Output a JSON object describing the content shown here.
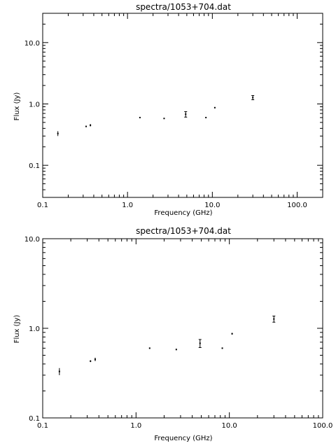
{
  "chart_data": [
    {
      "type": "scatter",
      "title": "spectra/1053+704.dat",
      "xlabel": "Frequency (GHz)",
      "ylabel": "Flux (Jy)",
      "xscale": "log",
      "yscale": "log",
      "xlim": [
        0.1,
        200
      ],
      "ylim": [
        0.03,
        30
      ],
      "xticks": [
        "0.1",
        "1.0",
        "10.0",
        "100.0"
      ],
      "yticks": [
        "0.1",
        "1.0",
        "10.0"
      ],
      "points": [
        {
          "x": 0.151,
          "y": 0.33,
          "err": 0.03
        },
        {
          "x": 0.325,
          "y": 0.43,
          "err": 0.01
        },
        {
          "x": 0.365,
          "y": 0.45,
          "err": 0.02
        },
        {
          "x": 1.4,
          "y": 0.6,
          "err": 0.01
        },
        {
          "x": 2.7,
          "y": 0.58,
          "err": 0.01
        },
        {
          "x": 4.85,
          "y": 0.68,
          "err": 0.07
        },
        {
          "x": 8.4,
          "y": 0.6,
          "err": 0.01
        },
        {
          "x": 10.7,
          "y": 0.87,
          "err": 0.02
        },
        {
          "x": 30.0,
          "y": 1.27,
          "err": 0.1
        }
      ]
    },
    {
      "type": "scatter",
      "title": "spectra/1053+704.dat",
      "xlabel": "Frequency (GHz)",
      "ylabel": "Flux (Jy)",
      "xscale": "log",
      "yscale": "log",
      "xlim": [
        0.1,
        100
      ],
      "ylim": [
        0.1,
        10
      ],
      "xticks": [
        "0.1",
        "1.0",
        "10.0",
        "100.0"
      ],
      "yticks": [
        "0.1",
        "1.0",
        "10.0"
      ],
      "points": [
        {
          "x": 0.151,
          "y": 0.33,
          "err": 0.03
        },
        {
          "x": 0.325,
          "y": 0.43,
          "err": 0.01
        },
        {
          "x": 0.365,
          "y": 0.45,
          "err": 0.02
        },
        {
          "x": 1.4,
          "y": 0.6,
          "err": 0.01
        },
        {
          "x": 2.7,
          "y": 0.58,
          "err": 0.01
        },
        {
          "x": 4.85,
          "y": 0.68,
          "err": 0.07
        },
        {
          "x": 8.4,
          "y": 0.6,
          "err": 0.01
        },
        {
          "x": 10.7,
          "y": 0.87,
          "err": 0.02
        },
        {
          "x": 30.0,
          "y": 1.27,
          "err": 0.1
        }
      ]
    }
  ]
}
